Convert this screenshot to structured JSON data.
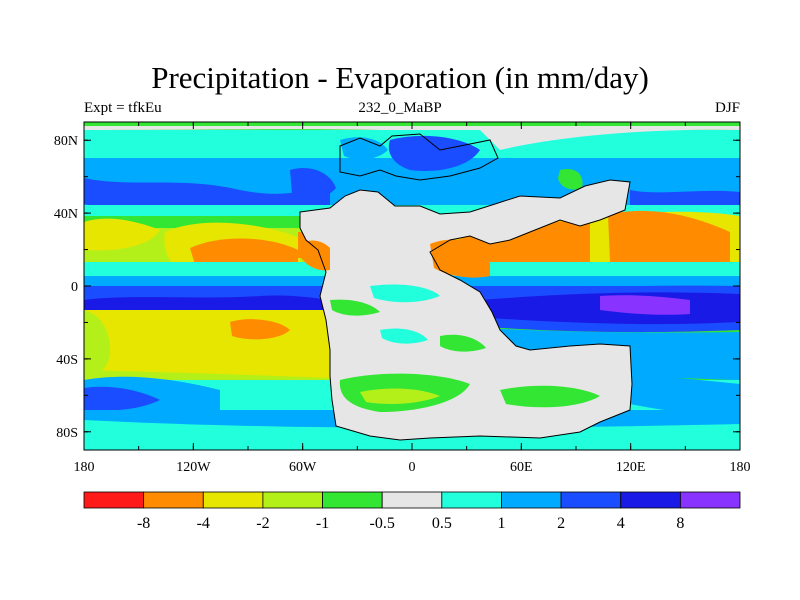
{
  "title": "Precipitation - Evaporation (in mm/day)",
  "subtitle_left": "Expt = tfkEu",
  "subtitle_center": "232_0_MaBP",
  "subtitle_right": "DJF",
  "x_ticks": [
    {
      "value": -180,
      "label": "180"
    },
    {
      "value": -120,
      "label": "120W"
    },
    {
      "value": -60,
      "label": "60W"
    },
    {
      "value": 0,
      "label": "0"
    },
    {
      "value": 60,
      "label": "60E"
    },
    {
      "value": 120,
      "label": "120E"
    },
    {
      "value": 180,
      "label": "180"
    }
  ],
  "y_ticks": [
    {
      "value": 80,
      "label": "80N"
    },
    {
      "value": 40,
      "label": "40N"
    },
    {
      "value": 0,
      "label": "0"
    },
    {
      "value": -40,
      "label": "40S"
    },
    {
      "value": -80,
      "label": "80S"
    }
  ],
  "colorbar": {
    "colors": [
      "#ff1a1a",
      "#ff8c00",
      "#e6e600",
      "#b3f01a",
      "#33e633",
      "#e6e6e6",
      "#22ffdd",
      "#00aaff",
      "#1a4dff",
      "#1a1ae6",
      "#8833ff"
    ],
    "labels": [
      "-8",
      "-4",
      "-2",
      "-1",
      "-0.5",
      "0.5",
      "1",
      "2",
      "4",
      "8"
    ]
  }
}
